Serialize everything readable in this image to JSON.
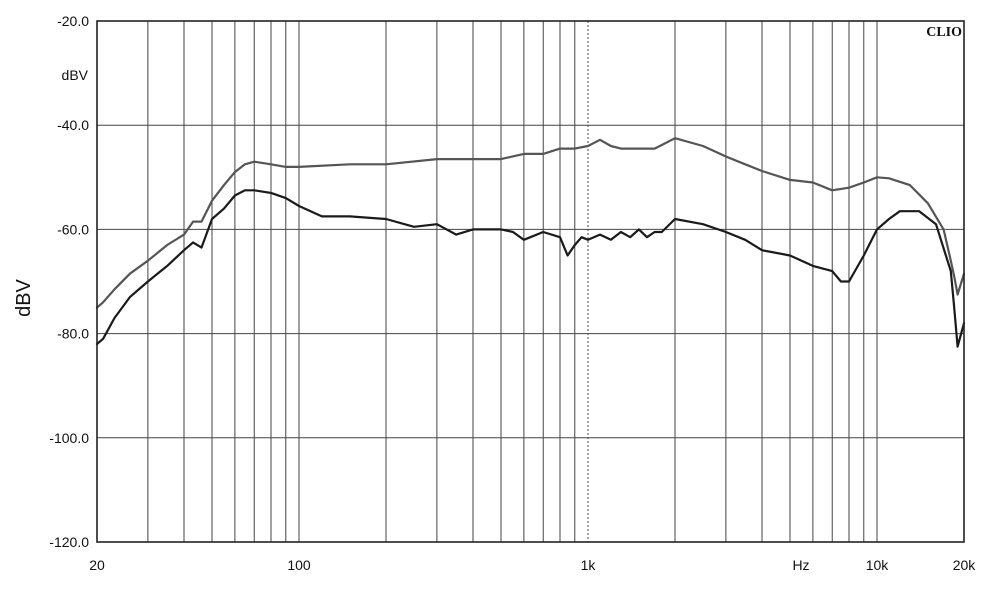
{
  "chart_data": {
    "type": "line",
    "title": "",
    "brand": "CLIO",
    "xlabel": "",
    "x_unit_label": "Hz",
    "ylabel": "dBV",
    "y_unit_label": "dBV",
    "xscale": "log",
    "xlim": [
      20,
      20000
    ],
    "ylim": [
      -120,
      -20
    ],
    "grid": true,
    "y_ticks": [
      {
        "value": -20,
        "label": "-20.0"
      },
      {
        "value": -40,
        "label": "-40.0"
      },
      {
        "value": -60,
        "label": "-60.0"
      },
      {
        "value": -80,
        "label": "-80.0"
      },
      {
        "value": -100,
        "label": "-100.0"
      },
      {
        "value": -120,
        "label": "-120.0"
      }
    ],
    "x_tick_labels": [
      {
        "value": 20,
        "label": "20"
      },
      {
        "value": 100,
        "label": "100"
      },
      {
        "value": 1000,
        "label": "1k"
      },
      {
        "value": 10000,
        "label": "10k"
      },
      {
        "value": 20000,
        "label": "20k"
      }
    ],
    "x_gridlines": [
      20,
      30,
      40,
      50,
      60,
      70,
      80,
      90,
      100,
      200,
      300,
      400,
      500,
      600,
      700,
      800,
      900,
      1000,
      2000,
      3000,
      4000,
      5000,
      6000,
      7000,
      8000,
      9000,
      10000,
      20000
    ],
    "series": [
      {
        "color": "#555555",
        "x": [
          20,
          21,
          23,
          26,
          30,
          35,
          40,
          43,
          46,
          50,
          55,
          60,
          65,
          70,
          80,
          90,
          100,
          150,
          200,
          300,
          400,
          500,
          600,
          700,
          800,
          900,
          1000,
          1100,
          1200,
          1300,
          1500,
          1700,
          1800,
          2000,
          2500,
          3000,
          3500,
          4000,
          5000,
          6000,
          7000,
          8000,
          9000,
          10000,
          11000,
          13000,
          15000,
          17000,
          18000,
          18500,
          19000,
          20000
        ],
        "y": [
          -75,
          -74,
          -71.5,
          -68.5,
          -66,
          -63,
          -61,
          -58.5,
          -58.5,
          -54.5,
          -51.5,
          -49,
          -47.5,
          -47,
          -47.5,
          -48,
          -48,
          -47.5,
          -47.5,
          -46.5,
          -46.5,
          -46.5,
          -45.5,
          -45.5,
          -44.5,
          -44.5,
          -44,
          -42.8,
          -44,
          -44.5,
          -44.5,
          -44.5,
          -43.8,
          -42.5,
          -44,
          -46,
          -47.5,
          -48.8,
          -50.5,
          -51,
          -52.5,
          -52,
          -51,
          -50,
          -50.2,
          -51.5,
          -55,
          -60,
          -66,
          -69,
          -72.5,
          -68.5
        ]
      },
      {
        "color": "#1a1a1a",
        "x": [
          20,
          21,
          23,
          26,
          30,
          35,
          40,
          43,
          46,
          50,
          55,
          60,
          65,
          70,
          80,
          90,
          100,
          120,
          150,
          200,
          250,
          300,
          350,
          400,
          500,
          550,
          600,
          700,
          800,
          850,
          900,
          950,
          1000,
          1100,
          1200,
          1300,
          1400,
          1500,
          1600,
          1700,
          1800,
          2000,
          2500,
          3000,
          3500,
          4000,
          5000,
          6000,
          7000,
          7500,
          8000,
          9000,
          10000,
          11000,
          12000,
          14000,
          16000,
          18000,
          18500,
          19000,
          20000
        ],
        "y": [
          -82,
          -81,
          -77,
          -73,
          -70,
          -67,
          -64,
          -62.5,
          -63.5,
          -58,
          -56,
          -53.5,
          -52.5,
          -52.5,
          -53,
          -54,
          -55.5,
          -57.5,
          -57.5,
          -58,
          -59.5,
          -59,
          -61,
          -60,
          -60,
          -60.5,
          -62,
          -60.5,
          -61.5,
          -65,
          -63,
          -61.5,
          -62,
          -61,
          -62,
          -60.5,
          -61.5,
          -60,
          -61.5,
          -60.5,
          -60.5,
          -58,
          -59,
          -60.5,
          -62,
          -64,
          -65,
          -67,
          -68,
          -70,
          -70,
          -65,
          -60,
          -58,
          -56.5,
          -56.5,
          -59,
          -68,
          -75,
          -82.5,
          -78
        ]
      }
    ]
  }
}
